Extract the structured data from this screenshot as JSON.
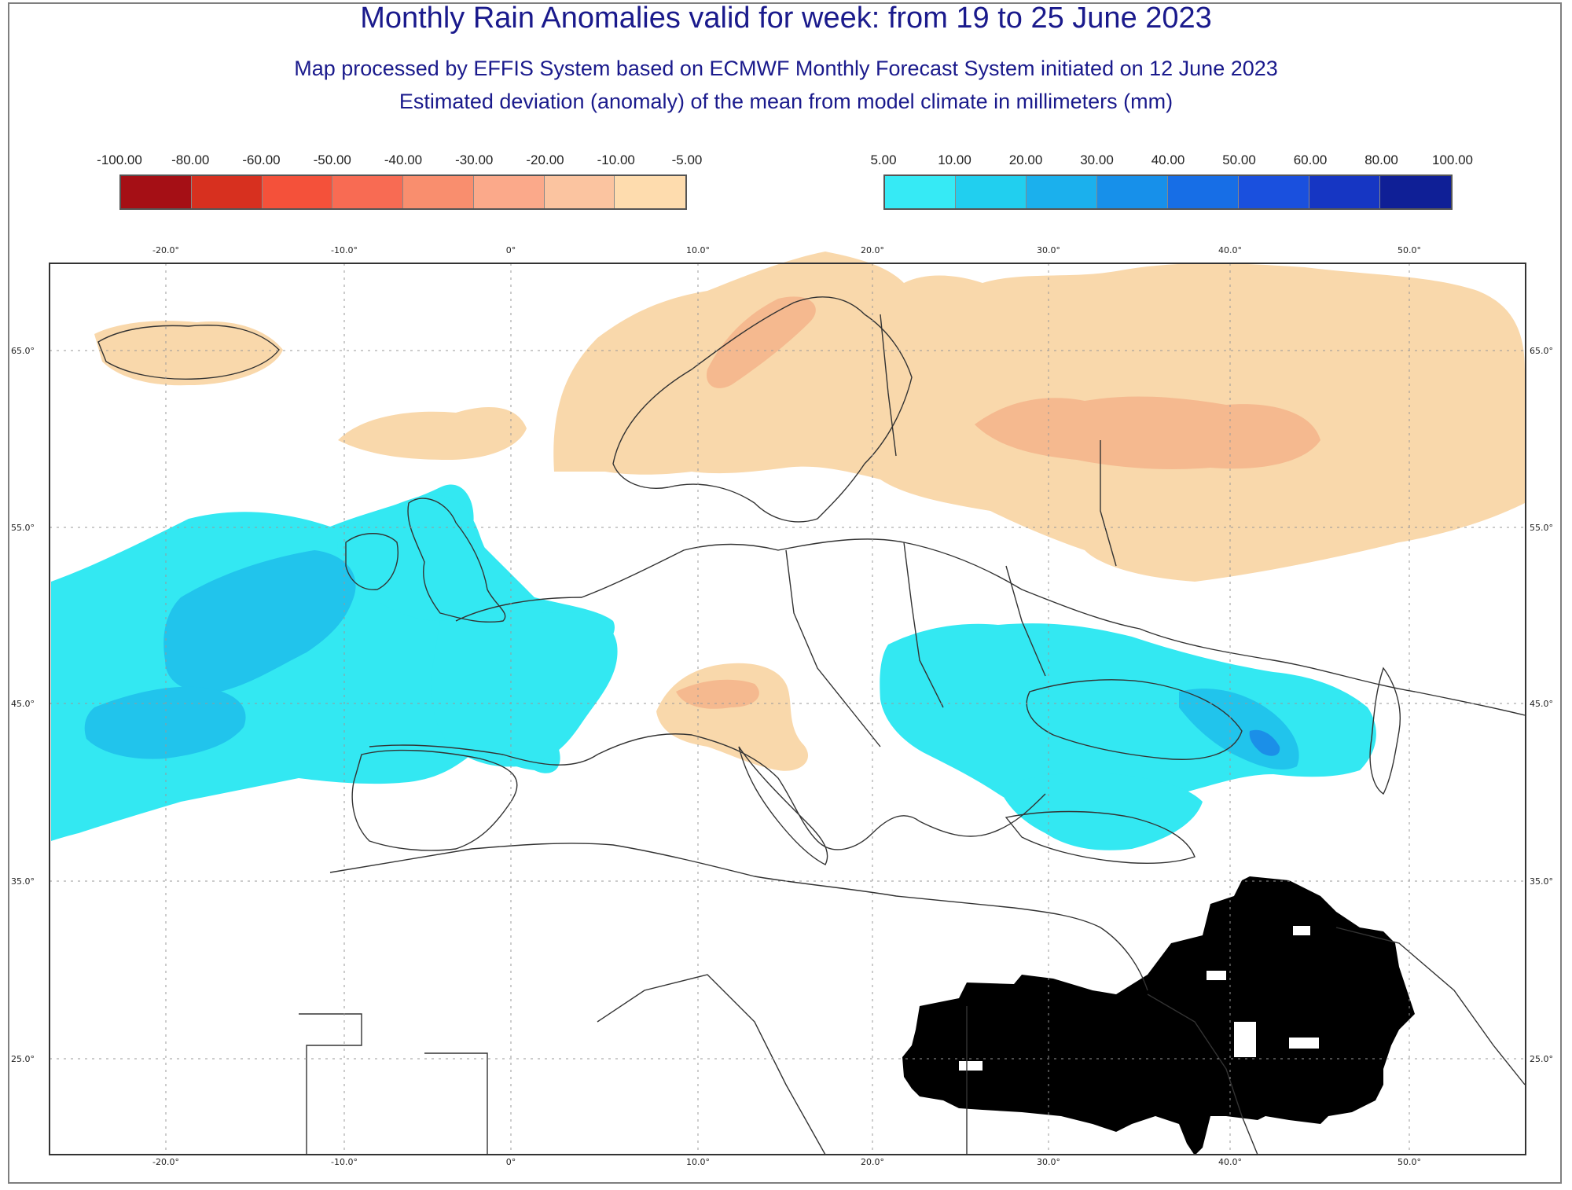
{
  "header": {
    "title": "Monthly Rain Anomalies valid for week: from 19 to 25 June 2023",
    "subtitle": "Map processed by EFFIS System based on ECMWF Monthly Forecast System initiated on 12 June 2023",
    "subtitle2": "Estimated deviation (anomaly) of the mean from model climate in millimeters (mm)"
  },
  "legend": {
    "negative_labels": [
      "-100.00",
      "-80.00",
      "-60.00",
      "-50.00",
      "-40.00",
      "-30.00",
      "-20.00",
      "-10.00",
      "-5.00"
    ],
    "negative_colors": [
      "#a50f15",
      "#d7301f",
      "#f4513a",
      "#f86b53",
      "#f98e6e",
      "#fba98a",
      "#fbc4a0",
      "#fedcae"
    ],
    "positive_labels": [
      "5.00",
      "10.00",
      "20.00",
      "30.00",
      "40.00",
      "50.00",
      "60.00",
      "80.00",
      "100.00"
    ],
    "positive_colors": [
      "#36eaf5",
      "#21cfef",
      "#1bb0ed",
      "#1790ea",
      "#176ee6",
      "#1a50de",
      "#1636c3",
      "#0f1f96"
    ]
  },
  "map": {
    "x_ticks": [
      "-20.0°",
      "-10.0°",
      "0°",
      "10.0°",
      "20.0°",
      "30.0°",
      "40.0°",
      "50.0°"
    ],
    "y_ticks": [
      "65.0°",
      "55.0°",
      "45.0°",
      "35.0°",
      "25.0°"
    ],
    "colors": {
      "dry_light": "#f9d8ab",
      "dry_mid": "#f5b98f",
      "wet_light": "#33e8f2",
      "wet_mid": "#21c4ec",
      "wet_dark": "#1b8fe8",
      "no_data": "#000000",
      "coast": "#333333",
      "grid": "#999999"
    }
  }
}
